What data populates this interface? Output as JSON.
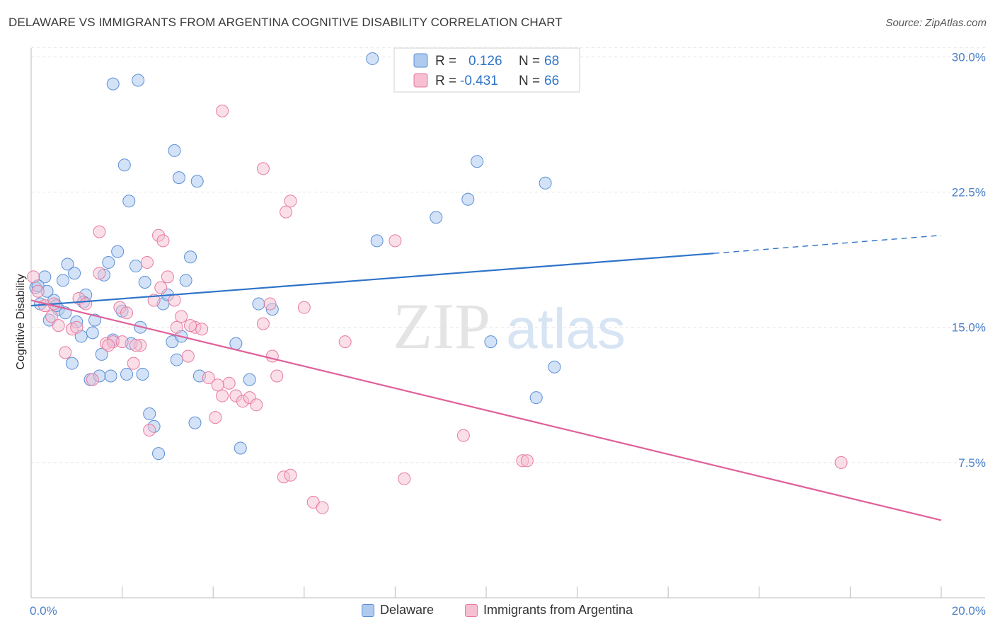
{
  "title": "DELAWARE VS IMMIGRANTS FROM ARGENTINA COGNITIVE DISABILITY CORRELATION CHART",
  "source": "Source: ZipAtlas.com",
  "watermark": {
    "zip": "ZIP",
    "atlas": "atlas"
  },
  "legend": {
    "r_label": "R =",
    "n_label": "N =",
    "rows": [
      {
        "r": "0.126",
        "n": "68"
      },
      {
        "r": "-0.431",
        "n": "66"
      }
    ]
  },
  "colors": {
    "delaware_fill": "#aecbef",
    "delaware_stroke": "#5a8fd6",
    "delaware_line": "#2f74c8",
    "argentina_fill": "#f6bfd2",
    "argentina_stroke": "#e87aa0",
    "argentina_line": "#e0609a",
    "tick_label": "#4a7fc8",
    "grid": "#e3e3e3"
  },
  "chart_data": {
    "type": "scatter",
    "title": "DELAWARE VS IMMIGRANTS FROM ARGENTINA COGNITIVE DISABILITY CORRELATION CHART",
    "xlabel": "",
    "ylabel": "Cognitive Disability",
    "xlim": [
      0,
      20
    ],
    "ylim": [
      0,
      30.8
    ],
    "x_ticks": [
      {
        "value": 0,
        "label": "0.0%"
      },
      {
        "value": 20,
        "label": "20.0%"
      }
    ],
    "y_ticks": [
      {
        "value": 7.5,
        "label": "7.5%"
      },
      {
        "value": 15,
        "label": "15.0%"
      },
      {
        "value": 22.5,
        "label": "22.5%"
      },
      {
        "value": 30,
        "label": "30.0%"
      }
    ],
    "grid": true,
    "legend_position": "top-center",
    "series": [
      {
        "name": "Delaware",
        "r": 0.126,
        "n": 68,
        "trend": {
          "x0": 0,
          "y0": 16.2,
          "x1": 15.0,
          "y1": 19.1,
          "dashed_to_x": 20,
          "dashed_to_y": 20.1
        },
        "points": [
          [
            0.1,
            17.2
          ],
          [
            0.2,
            16.3
          ],
          [
            0.3,
            17.8
          ],
          [
            0.4,
            15.4
          ],
          [
            0.5,
            16.5
          ],
          [
            0.6,
            16.0
          ],
          [
            0.7,
            17.6
          ],
          [
            0.8,
            18.5
          ],
          [
            0.9,
            13.0
          ],
          [
            1.0,
            15.3
          ],
          [
            1.1,
            14.5
          ],
          [
            1.2,
            16.8
          ],
          [
            1.3,
            12.1
          ],
          [
            1.4,
            15.4
          ],
          [
            1.5,
            12.3
          ],
          [
            1.6,
            17.9
          ],
          [
            1.7,
            18.6
          ],
          [
            1.8,
            14.3
          ],
          [
            1.9,
            19.2
          ],
          [
            2.0,
            15.9
          ],
          [
            2.1,
            12.4
          ],
          [
            2.2,
            14.1
          ],
          [
            2.3,
            18.4
          ],
          [
            2.4,
            15.0
          ],
          [
            2.5,
            17.5
          ],
          [
            2.6,
            10.2
          ],
          [
            2.7,
            9.5
          ],
          [
            2.8,
            8.0
          ],
          [
            2.9,
            16.3
          ],
          [
            3.0,
            16.8
          ],
          [
            3.1,
            14.2
          ],
          [
            3.2,
            13.2
          ],
          [
            3.3,
            14.5
          ],
          [
            3.4,
            17.6
          ],
          [
            3.5,
            18.9
          ],
          [
            3.6,
            9.7
          ],
          [
            3.7,
            12.3
          ],
          [
            4.5,
            14.1
          ],
          [
            4.6,
            8.3
          ],
          [
            4.8,
            12.1
          ],
          [
            5.0,
            16.3
          ],
          [
            5.3,
            16.0
          ],
          [
            0.15,
            17.3
          ],
          [
            0.35,
            17.0
          ],
          [
            0.55,
            16.2
          ],
          [
            0.75,
            15.8
          ],
          [
            0.95,
            18.0
          ],
          [
            1.15,
            16.4
          ],
          [
            1.35,
            14.7
          ],
          [
            1.55,
            13.5
          ],
          [
            1.75,
            12.3
          ],
          [
            2.05,
            24.0
          ],
          [
            2.15,
            22.0
          ],
          [
            2.35,
            28.7
          ],
          [
            2.45,
            12.4
          ],
          [
            3.15,
            24.8
          ],
          [
            3.25,
            23.3
          ],
          [
            3.65,
            23.1
          ],
          [
            1.8,
            28.5
          ],
          [
            7.5,
            29.9
          ],
          [
            7.6,
            19.8
          ],
          [
            8.9,
            21.1
          ],
          [
            9.6,
            22.1
          ],
          [
            9.8,
            24.2
          ],
          [
            10.1,
            14.2
          ],
          [
            11.1,
            11.1
          ],
          [
            11.3,
            23.0
          ],
          [
            11.5,
            12.8
          ]
        ]
      },
      {
        "name": "Immigrants from Argentina",
        "r": -0.431,
        "n": 66,
        "trend": {
          "x0": 0,
          "y0": 16.5,
          "x1": 20,
          "y1": 4.3
        },
        "points": [
          [
            0.05,
            17.8
          ],
          [
            0.15,
            17.0
          ],
          [
            0.3,
            16.2
          ],
          [
            0.45,
            15.6
          ],
          [
            0.6,
            15.1
          ],
          [
            0.75,
            13.6
          ],
          [
            0.9,
            14.9
          ],
          [
            1.05,
            16.6
          ],
          [
            1.2,
            16.3
          ],
          [
            1.35,
            12.1
          ],
          [
            1.5,
            18.0
          ],
          [
            1.65,
            14.1
          ],
          [
            1.8,
            14.2
          ],
          [
            1.95,
            16.1
          ],
          [
            2.1,
            15.8
          ],
          [
            2.25,
            13.0
          ],
          [
            2.4,
            14.0
          ],
          [
            2.55,
            18.6
          ],
          [
            2.7,
            16.5
          ],
          [
            2.85,
            17.2
          ],
          [
            3.0,
            17.8
          ],
          [
            3.15,
            16.5
          ],
          [
            3.3,
            15.6
          ],
          [
            3.45,
            13.4
          ],
          [
            3.6,
            15.0
          ],
          [
            3.75,
            14.9
          ],
          [
            3.9,
            12.2
          ],
          [
            4.05,
            10.0
          ],
          [
            4.2,
            11.2
          ],
          [
            4.35,
            11.9
          ],
          [
            4.5,
            11.2
          ],
          [
            4.65,
            10.9
          ],
          [
            4.8,
            11.1
          ],
          [
            4.95,
            10.7
          ],
          [
            5.1,
            15.2
          ],
          [
            5.25,
            16.3
          ],
          [
            5.4,
            12.3
          ],
          [
            5.55,
            6.7
          ],
          [
            5.7,
            6.8
          ],
          [
            1.5,
            20.3
          ],
          [
            2.8,
            20.1
          ],
          [
            2.9,
            19.8
          ],
          [
            4.2,
            27.0
          ],
          [
            5.1,
            23.8
          ],
          [
            5.6,
            21.4
          ],
          [
            5.7,
            22.0
          ],
          [
            6.0,
            16.1
          ],
          [
            6.2,
            5.3
          ],
          [
            6.4,
            5.0
          ],
          [
            6.9,
            14.2
          ],
          [
            8.0,
            19.8
          ],
          [
            8.2,
            6.6
          ],
          [
            9.5,
            9.0
          ],
          [
            10.8,
            7.6
          ],
          [
            10.9,
            7.6
          ],
          [
            17.8,
            7.5
          ],
          [
            0.5,
            16.3
          ],
          [
            1.0,
            15.0
          ],
          [
            1.7,
            14.0
          ],
          [
            2.0,
            14.2
          ],
          [
            2.3,
            14.0
          ],
          [
            2.6,
            9.3
          ],
          [
            3.5,
            15.1
          ],
          [
            3.2,
            15.0
          ],
          [
            4.1,
            11.8
          ],
          [
            5.3,
            13.4
          ]
        ]
      }
    ]
  },
  "bottom_legend": [
    {
      "label": "Delaware"
    },
    {
      "label": "Immigrants from Argentina"
    }
  ]
}
